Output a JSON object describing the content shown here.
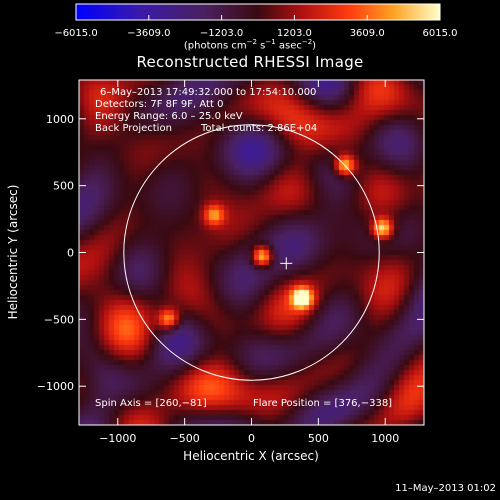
{
  "chart_data": {
    "type": "heatmap",
    "title": "Reconstructed RHESSI Image",
    "xlabel": "Heliocentric X (arcsec)",
    "ylabel": "Heliocentric Y (arcsec)",
    "xlim": [
      -1290,
      1290
    ],
    "ylim": [
      -1290,
      1290
    ],
    "x_ticks": [
      -1000,
      -500,
      0,
      500,
      1000
    ],
    "y_ticks": [
      -1000,
      -500,
      0,
      500,
      1000
    ],
    "x_tick_labels": [
      "−1000",
      "−500",
      "0",
      "500",
      "1000"
    ],
    "y_tick_labels": [
      "−1000",
      "−500",
      "0",
      "500",
      "1000"
    ],
    "colorbar": {
      "min": -6015.0,
      "max": 6015.0,
      "ticks": [
        -6015.0,
        -3609.0,
        -1203.0,
        1203.0,
        3609.0,
        6015.0
      ],
      "tick_labels": [
        "−6015.0",
        "−3609.0",
        "−1203.0",
        "1203.0",
        "3609.0",
        "6015.0"
      ],
      "units_main": "(photons cm",
      "units_exp1": "−2",
      "units_mid1": " s",
      "units_exp2": "−1",
      "units_mid2": " asec",
      "units_exp3": "−2",
      "units_end": ")"
    },
    "annotations": {
      "time_range": "6–May–2013 17:49:32.000 to 17:54:10.000",
      "detectors": "Detectors: 7F 8F 9F, Att 0",
      "energy_range": "Energy Range: 6.0 – 25.0 keV",
      "method": "Back Projection",
      "total_counts": "Total counts: 2.86E+04",
      "spin_axis": "Spin Axis = [260,−81]",
      "flare_position": "Flare Position = [376,−338]"
    },
    "solar_limb_radius_arcsec": 955,
    "disk_center": [
      0,
      0
    ],
    "marker_position": [
      260,
      -81
    ],
    "bright_sources": [
      {
        "x": 80,
        "y": -30,
        "level": 1.0
      },
      {
        "x": 380,
        "y": -340,
        "level": 1.0
      },
      {
        "x": 980,
        "y": 180,
        "level": 0.9
      },
      {
        "x": 700,
        "y": 650,
        "level": 0.85
      },
      {
        "x": -620,
        "y": -500,
        "level": 0.75
      },
      {
        "x": -280,
        "y": 280,
        "level": 0.6
      }
    ]
  },
  "footer": {
    "date": "11–May–2013 01:02"
  },
  "colors": {
    "background": "#000000",
    "axis": "#ffffff",
    "limb": "#ffffff"
  }
}
